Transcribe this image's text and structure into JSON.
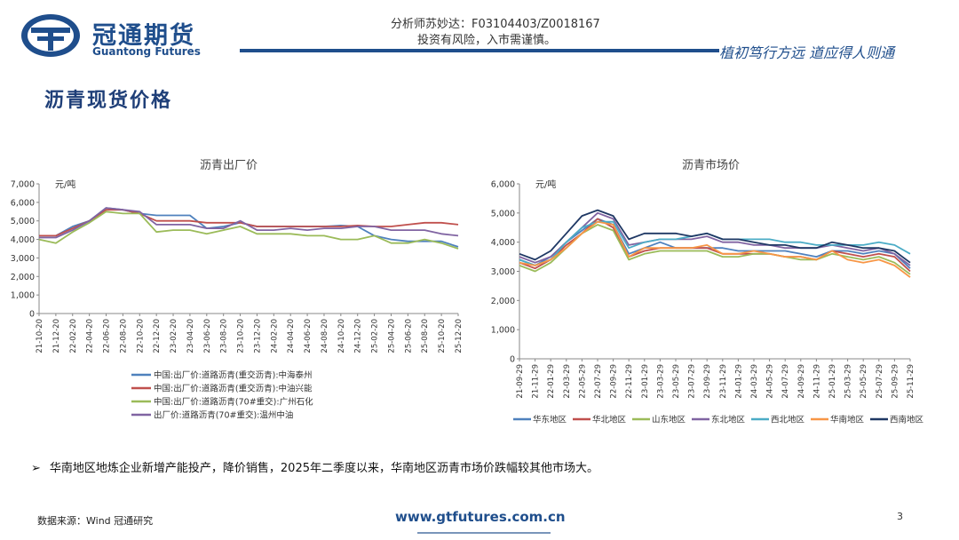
{
  "header": {
    "brand_cn": "冠通期货",
    "brand_en": "Guantong Futures",
    "analyst": "分析师苏妙达：F03104403/Z0018167",
    "risk": "投资有风险，入市需谨慎。",
    "slogan": "植初笃行方远  道应得人则通"
  },
  "page_title": "沥青现货价格",
  "bullet": "华南地区地炼企业新增产能投产，降价销售，2025年二季度以来，华南地区沥青市场价跌幅较其他市场大。",
  "footer": {
    "source": "数据来源：Wind 冠通研究",
    "url": "www.gtfutures.com.cn",
    "page": "3"
  },
  "chart_data": [
    {
      "type": "line",
      "title": "沥青出厂价",
      "ylabel": "元/吨",
      "ylim": [
        0,
        7000
      ],
      "yticks": [
        "0",
        "1,000",
        "2,000",
        "3,000",
        "4,000",
        "5,000",
        "6,000",
        "7,000"
      ],
      "x": [
        "21-10-20",
        "21-12-20",
        "22-02-20",
        "22-04-20",
        "22-06-20",
        "22-08-20",
        "22-10-20",
        "22-12-20",
        "23-02-20",
        "23-04-20",
        "23-06-20",
        "23-08-20",
        "23-10-20",
        "23-12-20",
        "24-02-20",
        "24-04-20",
        "24-06-20",
        "24-08-20",
        "24-10-20",
        "24-12-20",
        "25-02-20",
        "25-04-20",
        "25-06-20",
        "25-08-20",
        "25-10-20",
        "25-12-20"
      ],
      "legend_position": "bottom",
      "series": [
        {
          "name": "中国:出厂价:道路沥青(重交沥青):中海泰州",
          "color": "#4f81bd",
          "values": [
            4200,
            4200,
            4700,
            5000,
            5700,
            5600,
            5400,
            5300,
            5300,
            5300,
            4600,
            4700,
            4900,
            4700,
            4700,
            4700,
            4700,
            4700,
            4750,
            4700,
            4200,
            4000,
            3900,
            3900,
            3900,
            3600
          ]
        },
        {
          "name": "中国:出厂价:道路沥青(重交沥青):中油兴能",
          "color": "#c0504d",
          "values": [
            4200,
            4200,
            4600,
            5000,
            5600,
            5600,
            5400,
            5000,
            5000,
            5000,
            4900,
            4900,
            4900,
            4700,
            4700,
            4700,
            4700,
            4700,
            4700,
            4750,
            4700,
            4700,
            4800,
            4900,
            4900,
            4800
          ]
        },
        {
          "name": "中国:出厂价:道路沥青(70#重交):广州石化",
          "color": "#9bbb59",
          "values": [
            4000,
            3800,
            4400,
            4900,
            5500,
            5400,
            5400,
            4400,
            4500,
            4500,
            4300,
            4500,
            4700,
            4300,
            4300,
            4300,
            4200,
            4200,
            4000,
            4000,
            4200,
            3800,
            3800,
            4000,
            3800,
            3500
          ]
        },
        {
          "name": "出厂价:道路沥青(70#重交):温州中油",
          "color": "#8064a2",
          "values": [
            4100,
            4100,
            4500,
            5000,
            5700,
            5600,
            5500,
            4800,
            4800,
            4800,
            4600,
            4600,
            5000,
            4500,
            4500,
            4600,
            4500,
            4600,
            4600,
            4700,
            4700,
            4500,
            4500,
            4500,
            4300,
            4200
          ]
        }
      ]
    },
    {
      "type": "line",
      "title": "沥青市场价",
      "ylabel": "元/吨",
      "ylim": [
        0,
        6000
      ],
      "yticks": [
        "0",
        "1,000",
        "2,000",
        "3,000",
        "4,000",
        "5,000",
        "6,000"
      ],
      "x": [
        "21-09-29",
        "21-11-29",
        "22-01-29",
        "22-03-29",
        "22-05-29",
        "22-07-29",
        "22-09-29",
        "22-11-29",
        "23-01-29",
        "23-03-29",
        "23-05-29",
        "23-07-29",
        "23-09-29",
        "23-11-29",
        "24-01-29",
        "24-03-29",
        "24-05-29",
        "24-07-29",
        "24-09-29",
        "24-11-29",
        "25-01-29",
        "25-03-29",
        "25-05-29",
        "25-07-29",
        "25-09-29",
        "25-11-29"
      ],
      "legend_position": "bottom",
      "series": [
        {
          "name": "华东地区",
          "color": "#4f81bd",
          "values": [
            3400,
            3200,
            3500,
            4000,
            4400,
            4800,
            4600,
            3600,
            3800,
            4000,
            3800,
            3800,
            3800,
            3800,
            3700,
            3700,
            3700,
            3700,
            3600,
            3500,
            3700,
            3700,
            3600,
            3700,
            3600,
            3100
          ]
        },
        {
          "name": "华北地区",
          "color": "#c0504d",
          "values": [
            3300,
            3100,
            3400,
            3900,
            4300,
            4800,
            4500,
            3500,
            3700,
            3800,
            3800,
            3800,
            3800,
            3600,
            3600,
            3600,
            3600,
            3500,
            3500,
            3400,
            3700,
            3600,
            3500,
            3600,
            3500,
            3000
          ]
        },
        {
          "name": "山东地区",
          "color": "#9bbb59",
          "values": [
            3200,
            3000,
            3300,
            3800,
            4300,
            4600,
            4400,
            3400,
            3600,
            3700,
            3700,
            3700,
            3700,
            3500,
            3500,
            3600,
            3600,
            3500,
            3400,
            3400,
            3600,
            3500,
            3400,
            3500,
            3300,
            2900
          ]
        },
        {
          "name": "东北地区",
          "color": "#8064a2",
          "values": [
            3500,
            3300,
            3500,
            4000,
            4500,
            5000,
            4800,
            3900,
            4000,
            4100,
            4100,
            4100,
            4200,
            4000,
            4000,
            3900,
            3900,
            3800,
            3800,
            3800,
            3900,
            3800,
            3700,
            3800,
            3600,
            3200
          ]
        },
        {
          "name": "西北地区",
          "color": "#4bacc6",
          "values": [
            3400,
            3200,
            3400,
            4000,
            4500,
            4700,
            4700,
            3800,
            4000,
            4100,
            4100,
            4200,
            4300,
            4100,
            4100,
            4100,
            4100,
            4000,
            4000,
            3900,
            3900,
            3900,
            3900,
            4000,
            3900,
            3600
          ]
        },
        {
          "name": "华南地区",
          "color": "#f79646",
          "values": [
            3300,
            3200,
            3400,
            3800,
            4300,
            4700,
            4600,
            3500,
            3800,
            3800,
            3800,
            3800,
            3900,
            3600,
            3600,
            3700,
            3600,
            3500,
            3500,
            3400,
            3700,
            3400,
            3300,
            3400,
            3200,
            2800
          ]
        },
        {
          "name": "西南地区",
          "color": "#1f3864",
          "values": [
            3600,
            3400,
            3700,
            4300,
            4900,
            5100,
            4900,
            4100,
            4300,
            4300,
            4300,
            4200,
            4300,
            4100,
            4100,
            4000,
            3900,
            3900,
            3800,
            3800,
            4000,
            3900,
            3800,
            3800,
            3700,
            3300
          ]
        }
      ]
    }
  ]
}
